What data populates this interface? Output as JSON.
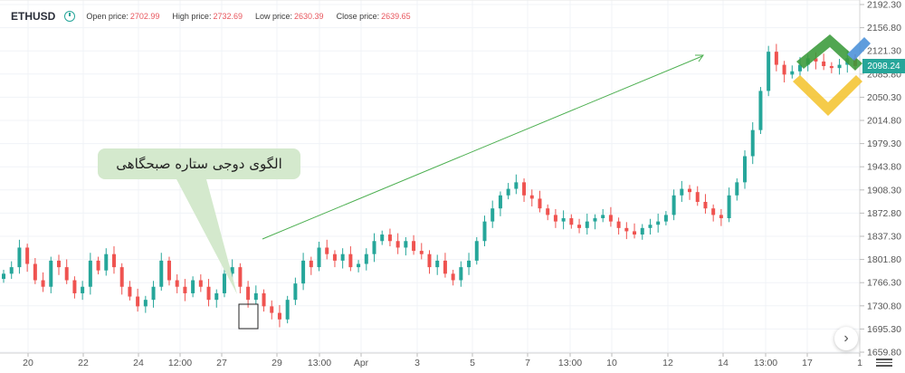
{
  "header": {
    "symbol": "ETHUSD",
    "open_label": "Open price:",
    "open_value": "2702.99",
    "high_label": "High price:",
    "high_value": "2732.69",
    "low_label": "Low price:",
    "low_value": "2630.39",
    "close_label": "Close price:",
    "close_value": "2639.65"
  },
  "annotation": {
    "text": "الگوی دوجی ستاره صبحگاهی"
  },
  "last_price": "2098.24",
  "colors": {
    "up": "#26a69a",
    "down": "#ef5350",
    "arrow": "#4caf50",
    "annotation_bg": "#d4e9cd"
  },
  "chart_data": {
    "type": "candlestick",
    "y_ticks": [
      "2192.30",
      "2156.80",
      "2121.30",
      "2085.80",
      "2050.30",
      "2014.80",
      "1979.30",
      "1943.80",
      "1908.30",
      "1872.80",
      "1837.30",
      "1801.80",
      "1766.30",
      "1730.80",
      "1695.30",
      "1659.80"
    ],
    "x_ticks": [
      "20",
      "22",
      "24",
      "12:00",
      "27",
      "29",
      "13:00",
      "Apr",
      "3",
      "5",
      "7",
      "13:00",
      "10",
      "12",
      "14",
      "13:00",
      "17",
      "1"
    ],
    "ylim": [
      1659.8,
      2192.3
    ],
    "pattern_label": "الگوی دوجی ستاره صبحگاهی",
    "series": [
      {
        "name": "ETHUSD",
        "values": [
          1780,
          1790,
          1820,
          1795,
          1770,
          1760,
          1800,
          1790,
          1770,
          1750,
          1760,
          1800,
          1785,
          1810,
          1790,
          1760,
          1745,
          1730,
          1740,
          1760,
          1800,
          1770,
          1760,
          1750,
          1770,
          1760,
          1740,
          1750,
          1780,
          1790,
          1760,
          1740,
          1750,
          1730,
          1720,
          1710,
          1740,
          1765,
          1800,
          1790,
          1820,
          1810,
          1800,
          1810,
          1790,
          1795,
          1810,
          1830,
          1840,
          1830,
          1820,
          1830,
          1815,
          1810,
          1790,
          1800,
          1780,
          1770,
          1790,
          1800,
          1830,
          1860,
          1880,
          1900,
          1910,
          1920,
          1900,
          1895,
          1880,
          1870,
          1860,
          1865,
          1855,
          1850,
          1860,
          1865,
          1870,
          1860,
          1850,
          1845,
          1840,
          1850,
          1855,
          1860,
          1870,
          1900,
          1910,
          1905,
          1890,
          1880,
          1870,
          1865,
          1900,
          1920,
          1960,
          2000,
          2060,
          2120,
          2100,
          2085,
          2090,
          2100,
          2110,
          2105,
          2098,
          2095,
          2100,
          2110,
          2098
        ]
      }
    ]
  }
}
